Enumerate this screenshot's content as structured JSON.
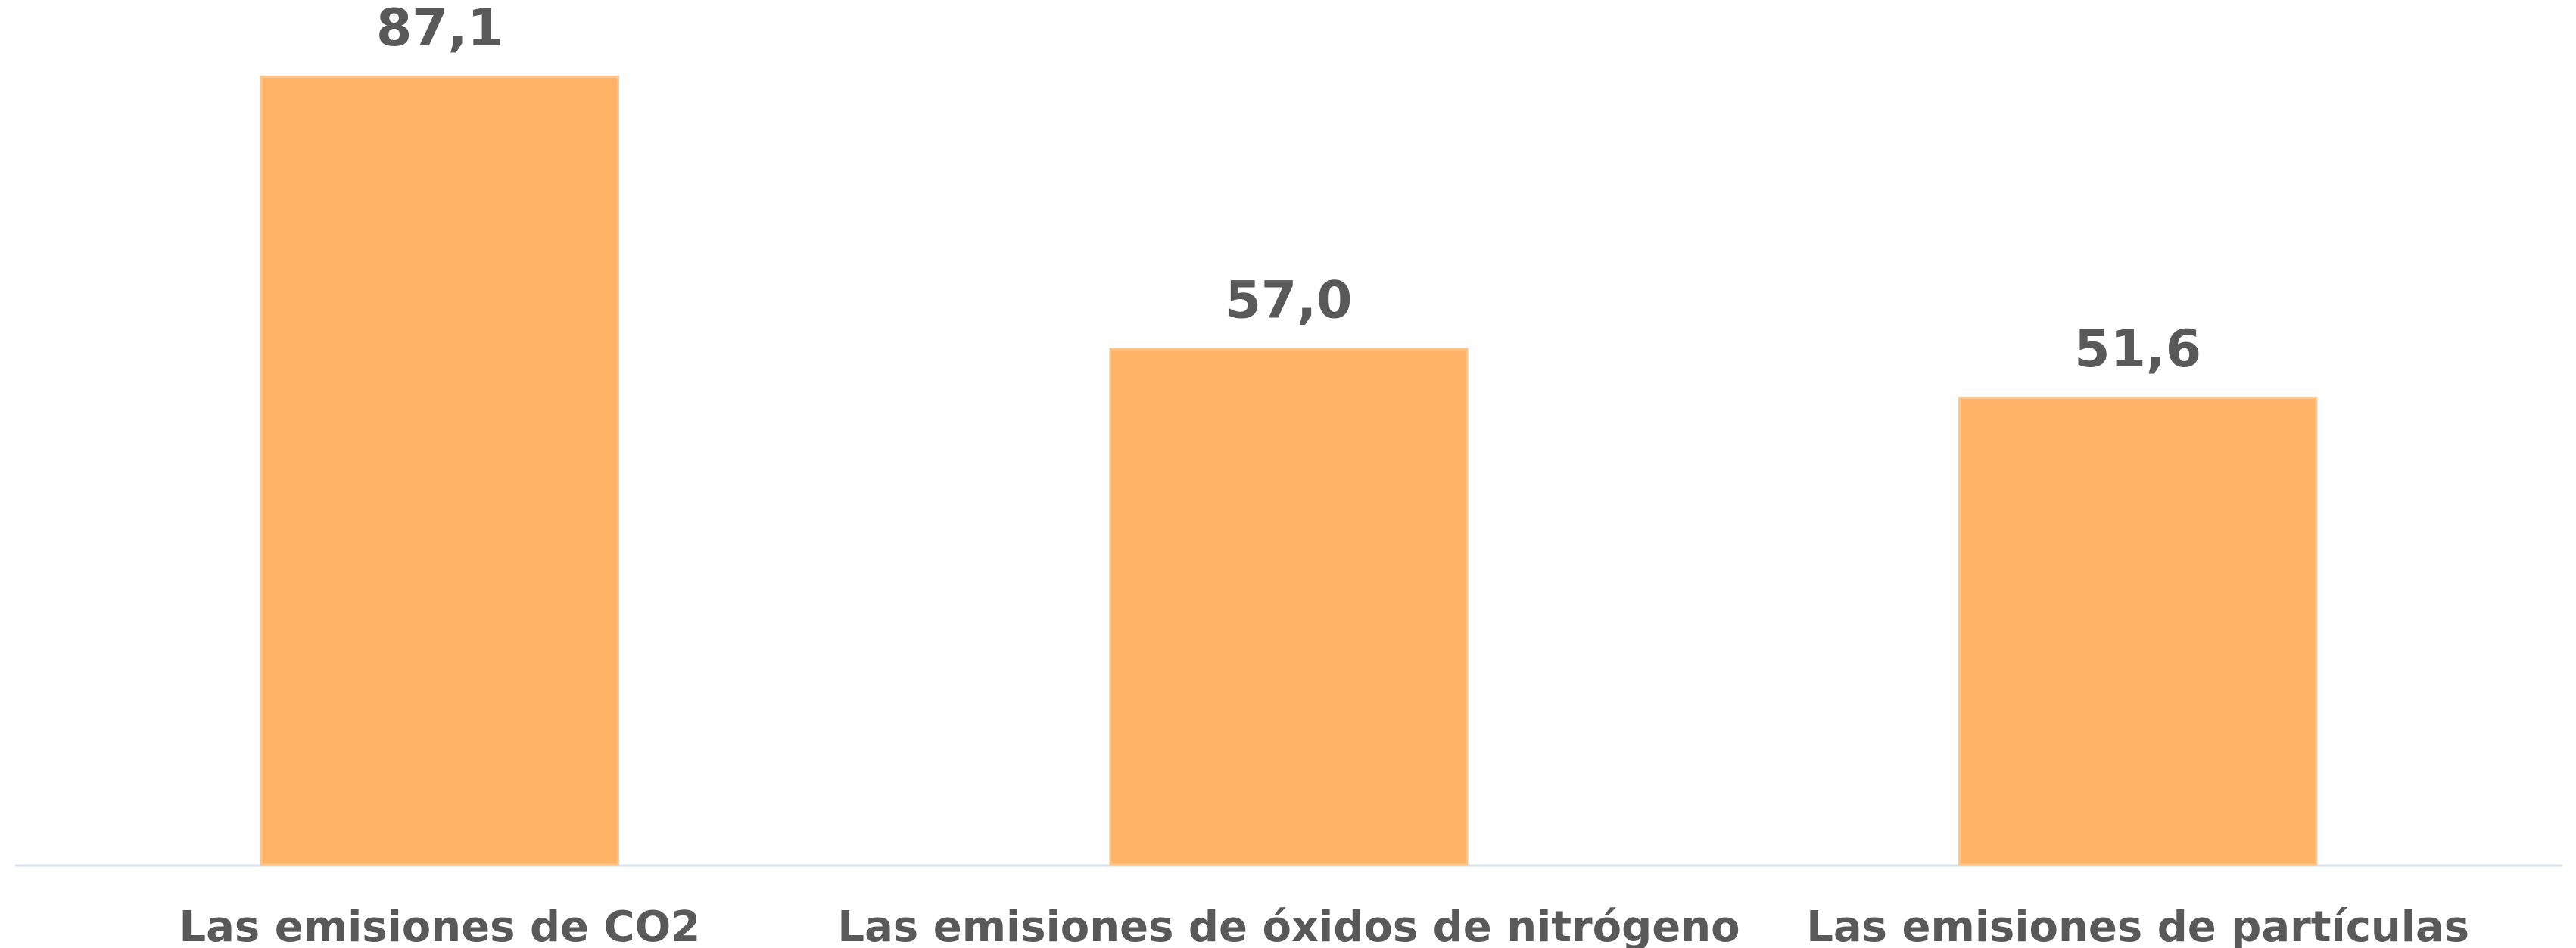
{
  "chart_data": {
    "type": "bar",
    "categories": [
      "Las emisiones de CO2",
      "Las emisiones de óxidos de nitrógeno",
      "Las emisiones de partículas"
    ],
    "values": [
      87.1,
      57.0,
      51.6
    ],
    "value_labels": [
      "87,1",
      "57,0",
      "51,6"
    ],
    "color": "#fdb366",
    "ylim": [
      0,
      95.6
    ]
  }
}
